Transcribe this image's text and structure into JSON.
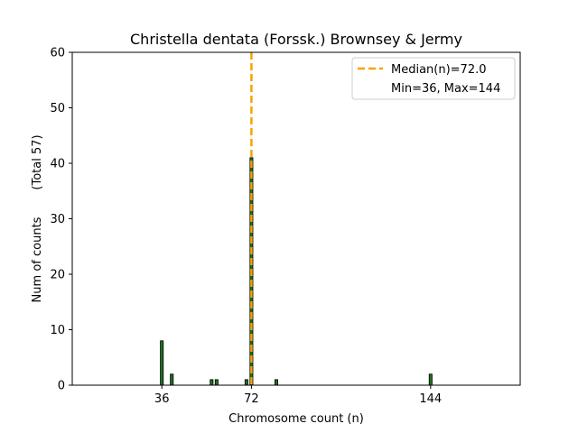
{
  "chart_data": {
    "type": "bar",
    "title": "Christella dentata (Forssk.) Brownsey & Jermy",
    "xlabel": "Chromosome count (n)",
    "ylabel": "Num of counts",
    "ylabel_total": "(Total 57)",
    "xlim": [
      0,
      180
    ],
    "ylim": [
      0,
      60
    ],
    "x_ticks": [
      36,
      72,
      144
    ],
    "y_ticks": [
      0,
      10,
      20,
      30,
      40,
      50,
      60
    ],
    "bar_color": "#1f6f1f",
    "bar_edge_color": "#000000",
    "median_color": "#f5a300",
    "grid": false,
    "legend_position": "top-right",
    "legend": {
      "median_label": "Median(n)=72.0",
      "range_label": "Min=36, Max=144"
    },
    "bars": [
      {
        "x": 36,
        "count": 8
      },
      {
        "x": 40,
        "count": 2
      },
      {
        "x": 56,
        "count": 1
      },
      {
        "x": 58,
        "count": 1
      },
      {
        "x": 70,
        "count": 1
      },
      {
        "x": 72,
        "count": 41
      },
      {
        "x": 82,
        "count": 1
      },
      {
        "x": 144,
        "count": 2
      }
    ],
    "median": 72.0
  }
}
